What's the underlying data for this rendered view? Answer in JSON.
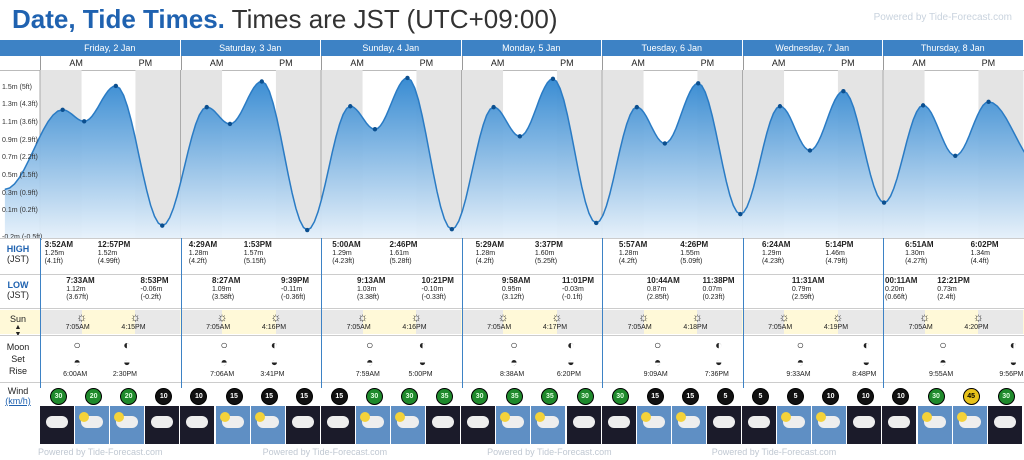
{
  "header": {
    "title_bold": "Date, Tide Times.",
    "title_rest": "Times are JST (UTC+09:00)",
    "brand": "Powered by Tide-Forecast.com"
  },
  "days": [
    {
      "name": "Friday, 2 Jan",
      "high": [
        {
          "t": "3:52AM",
          "m": "1.25m",
          "f": "(4.1ft)"
        },
        {
          "t": "12:57PM",
          "m": "1.52m",
          "f": "(4.99ft)"
        }
      ],
      "low": [
        {
          "t": "7:33AM",
          "m": "1.12m",
          "f": "(3.67ft)"
        },
        {
          "t": "8:53PM",
          "m": "-0.06m",
          "f": "(-0.2ft)"
        }
      ],
      "sunrise": "7:05AM",
      "sunset": "4:15PM",
      "moonrise": "6:00AM",
      "moonset": "2:30PM"
    },
    {
      "name": "Saturday, 3 Jan",
      "high": [
        {
          "t": "4:29AM",
          "m": "1.28m",
          "f": "(4.2ft)"
        },
        {
          "t": "1:53PM",
          "m": "1.57m",
          "f": "(5.15ft)"
        }
      ],
      "low": [
        {
          "t": "8:27AM",
          "m": "1.09m",
          "f": "(3.58ft)"
        },
        {
          "t": "9:39PM",
          "m": "-0.11m",
          "f": "(-0.36ft)"
        }
      ],
      "sunrise": "7:05AM",
      "sunset": "4:16PM",
      "moonrise": "7:06AM",
      "moonset": "3:41PM"
    },
    {
      "name": "Sunday, 4 Jan",
      "high": [
        {
          "t": "5:00AM",
          "m": "1.29m",
          "f": "(4.23ft)"
        },
        {
          "t": "2:46PM",
          "m": "1.61m",
          "f": "(5.28ft)"
        }
      ],
      "low": [
        {
          "t": "9:13AM",
          "m": "1.03m",
          "f": "(3.38ft)"
        },
        {
          "t": "10:21PM",
          "m": "-0.10m",
          "f": "(-0.33ft)"
        }
      ],
      "sunrise": "7:05AM",
      "sunset": "4:16PM",
      "moonrise": "7:59AM",
      "moonset": "5:00PM"
    },
    {
      "name": "Monday, 5 Jan",
      "high": [
        {
          "t": "5:29AM",
          "m": "1.28m",
          "f": "(4.2ft)"
        },
        {
          "t": "3:37PM",
          "m": "1.60m",
          "f": "(5.25ft)"
        }
      ],
      "low": [
        {
          "t": "9:58AM",
          "m": "0.95m",
          "f": "(3.12ft)"
        },
        {
          "t": "11:01PM",
          "m": "-0.03m",
          "f": "(-0.1ft)"
        }
      ],
      "sunrise": "7:05AM",
      "sunset": "4:17PM",
      "moonrise": "8:38AM",
      "moonset": "6:20PM"
    },
    {
      "name": "Tuesday, 6 Jan",
      "high": [
        {
          "t": "5:57AM",
          "m": "1.28m",
          "f": "(4.2ft)"
        },
        {
          "t": "4:26PM",
          "m": "1.55m",
          "f": "(5.09ft)"
        }
      ],
      "low": [
        {
          "t": "10:44AM",
          "m": "0.87m",
          "f": "(2.85ft)"
        },
        {
          "t": "11:38PM",
          "m": "0.07m",
          "f": "(0.23ft)"
        }
      ],
      "sunrise": "7:05AM",
      "sunset": "4:18PM",
      "moonrise": "9:09AM",
      "moonset": "7:36PM"
    },
    {
      "name": "Wednesday, 7 Jan",
      "high": [
        {
          "t": "6:24AM",
          "m": "1.29m",
          "f": "(4.23ft)"
        },
        {
          "t": "5:14PM",
          "m": "1.46m",
          "f": "(4.79ft)"
        }
      ],
      "low": [
        {
          "t": "11:31AM",
          "m": "0.79m",
          "f": "(2.59ft)"
        }
      ],
      "sunrise": "7:05AM",
      "sunset": "4:19PM",
      "moonrise": "9:33AM",
      "moonset": "8:48PM"
    },
    {
      "name": "Thursday, 8 Jan",
      "high": [
        {
          "t": "6:51AM",
          "m": "1.30m",
          "f": "(4.27ft)"
        },
        {
          "t": "6:02PM",
          "m": "1.34m",
          "f": "(4.4ft)"
        }
      ],
      "low": [
        {
          "t": "00:11AM",
          "m": "0.20m",
          "f": "(0.66ft)"
        },
        {
          "t": "12:21PM",
          "m": "0.73m",
          "f": "(2.4ft)"
        }
      ],
      "sunrise": "7:05AM",
      "sunset": "4:20PM",
      "moonrise": "9:55AM",
      "moonset": "9:56PM"
    }
  ],
  "ampm": {
    "am": "AM",
    "pm": "PM"
  },
  "yaxis": [
    "1.5m (5ft)",
    "1.3m (4.3ft)",
    "1.1m (3.6ft)",
    "0.9m (2.9ft)",
    "0.7m (2.2ft)",
    "0.5m (1.5ft)",
    "0.3m (0.9ft)",
    "0.1m (0.2ft)",
    "-0.2m (-0.5ft)"
  ],
  "labels": {
    "high": "HIGH",
    "high_tz": "(JST)",
    "low": "LOW",
    "low_tz": "(JST)",
    "sun": "Sun",
    "moon": "Moon",
    "set": "Set",
    "rise": "Rise",
    "wind": "Wind",
    "wind_unit": "(km/h)"
  },
  "wind": [
    "30",
    "20",
    "20",
    "10",
    "10",
    "15",
    "15",
    "15",
    "15",
    "30",
    "30",
    "35",
    "30",
    "35",
    "35",
    "30",
    "30",
    "15",
    "15",
    "5",
    "5",
    "5",
    "10",
    "10",
    "10",
    "30",
    "45",
    "30"
  ],
  "colors": {
    "accent": "#3d82c5",
    "title": "#1f62b0",
    "tide": "#3a8ed3"
  }
}
